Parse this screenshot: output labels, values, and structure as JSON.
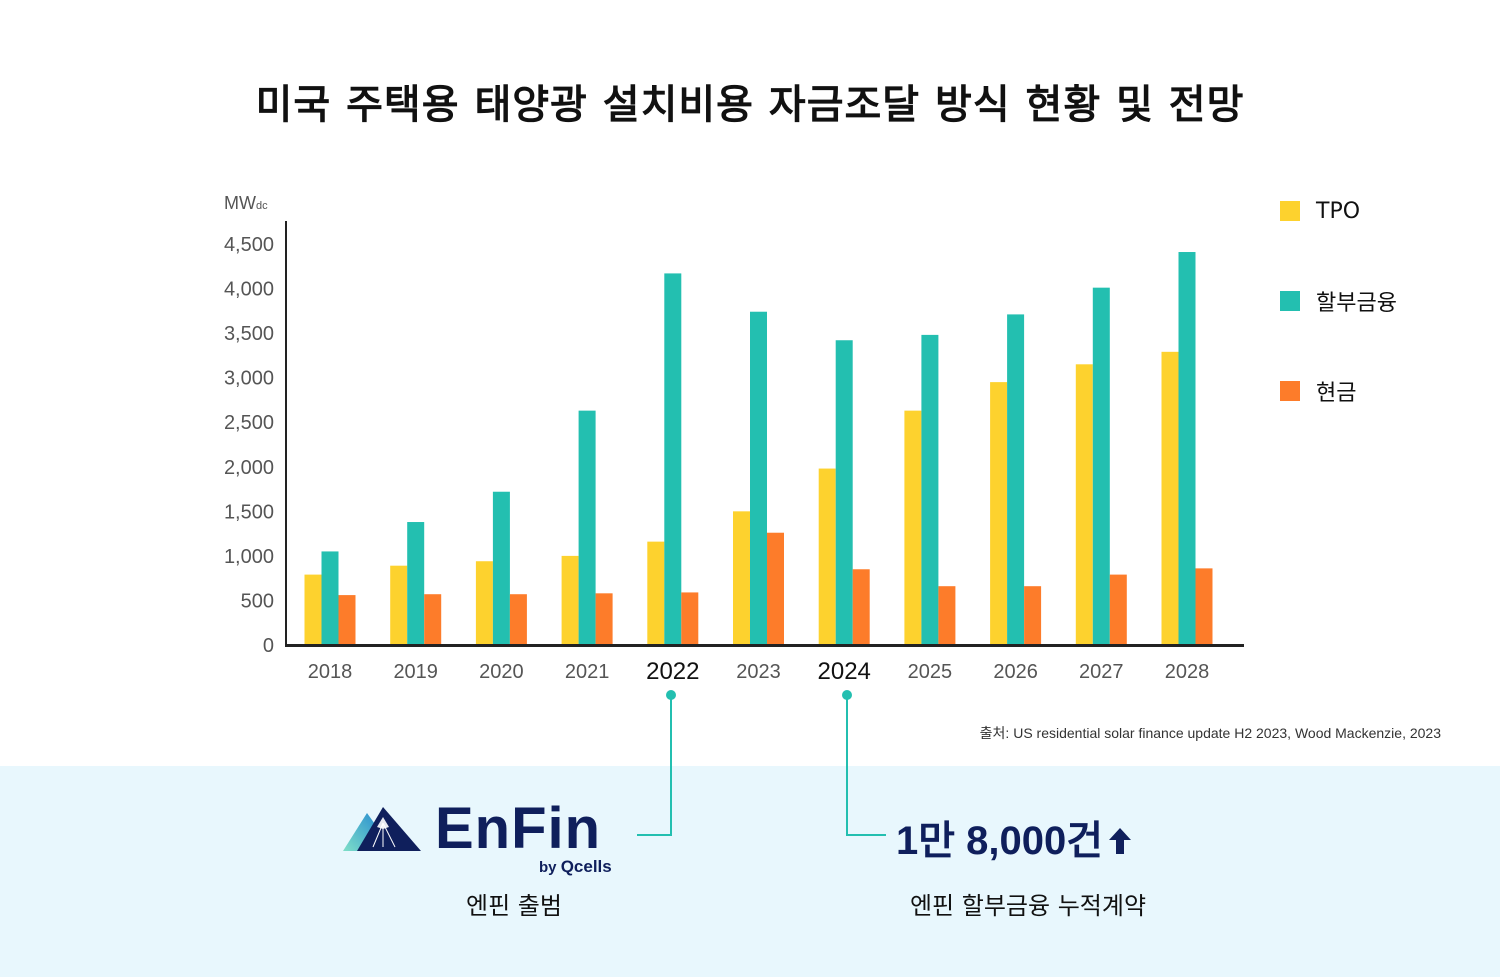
{
  "title": "미국 주택용 태양광 설치비용 자금조달 방식 현황 및 전망",
  "colors": {
    "tpo": "#fdd22e",
    "installment": "#23bfb0",
    "cash": "#fd7c2a",
    "navy": "#0f1f5c",
    "panel_bg": "#e8f7fd",
    "connector": "#23bfb0"
  },
  "chart_data": {
    "type": "bar",
    "ylabel": "MWdc",
    "ylabel_main": "MW",
    "ylabel_sub": "dc",
    "ylim": [
      0,
      4700
    ],
    "yticks": [
      0,
      500,
      1000,
      1500,
      2000,
      2500,
      3000,
      3500,
      4000,
      4500
    ],
    "ytick_labels": [
      "0",
      "500",
      "1,000",
      "1,500",
      "2,000",
      "2,500",
      "3,000",
      "3,500",
      "4,000",
      "4,500"
    ],
    "categories": [
      "2018",
      "2019",
      "2020",
      "2021",
      "2022",
      "2023",
      "2024",
      "2025",
      "2026",
      "2027",
      "2028"
    ],
    "highlight_categories": [
      "2022",
      "2024"
    ],
    "legend_position": "right",
    "grid": false,
    "series": [
      {
        "name": "TPO",
        "color": "#fdd22e",
        "values": [
          790,
          890,
          940,
          1000,
          1160,
          1500,
          1980,
          2630,
          2950,
          3150,
          3290
        ]
      },
      {
        "name": "할부금융",
        "color": "#23bfb0",
        "values": [
          1050,
          1380,
          1720,
          2630,
          4170,
          3740,
          3420,
          3480,
          3710,
          4010,
          4410
        ]
      },
      {
        "name": "현금",
        "color": "#fd7c2a",
        "values": [
          560,
          570,
          570,
          580,
          590,
          1260,
          850,
          660,
          660,
          790,
          860
        ]
      }
    ]
  },
  "source": "출처: US residential solar finance update H2 2023, Wood Mackenzie, 2023",
  "logo": {
    "name": "EnFin",
    "sub_prefix": "by",
    "sub_brand": "Qcells"
  },
  "left_caption": "엔핀 출범",
  "big_number": "1만 8,000건",
  "big_number_icon": "up-arrow-icon",
  "right_caption": "엔핀 할부금융 누적계약"
}
